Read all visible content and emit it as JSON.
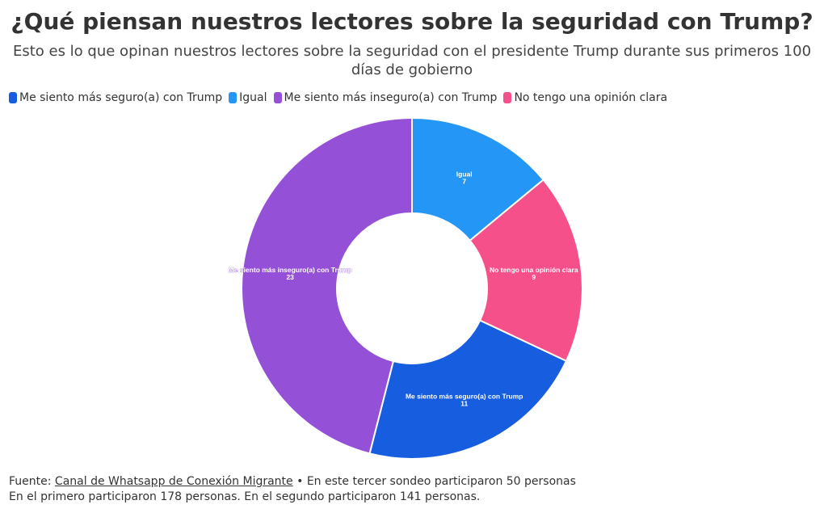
{
  "chart_data": {
    "type": "donut",
    "title": "¿Qué piensan nuestros lectores sobre la seguridad con Trump?",
    "subtitle": "Esto es lo que opinan nuestros lectores sobre la seguridad con el presidente Trump durante sus primeros 100 días de gobierno",
    "categories": [
      "Igual",
      "No tengo una opinión clara",
      "Me siento más seguro(a) con Trump",
      "Me siento más inseguro(a) con Trump"
    ],
    "values": [
      7,
      9,
      11,
      23
    ],
    "colors": [
      "#2496f5",
      "#f5508a",
      "#175de0",
      "#9550d8"
    ],
    "legend": [
      {
        "name": "Me siento más seguro(a) con Trump",
        "color": "#175de0"
      },
      {
        "name": "Igual",
        "color": "#2496f5"
      },
      {
        "name": "Me siento más inseguro(a) con Trump",
        "color": "#9550d8"
      },
      {
        "name": "No tengo una opinión clara",
        "color": "#f5508a"
      }
    ]
  },
  "source": {
    "prefix": "Fuente:",
    "link": "Canal de Whatsapp de Conexión Migrante",
    "note": "• En este tercer sondeo participaron 50 personas",
    "line2": "En el primero participaron 178 personas. En el segundo participaron 141 personas."
  }
}
